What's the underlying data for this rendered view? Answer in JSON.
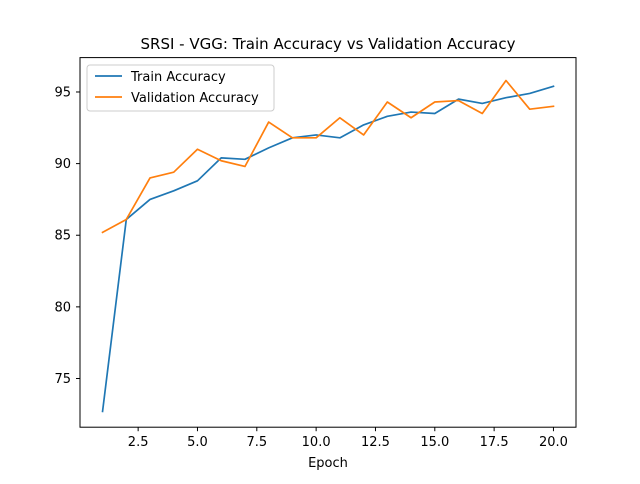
{
  "chart_data": {
    "type": "line",
    "title": "SRSI - VGG: Train Accuracy vs Validation Accuracy",
    "xlabel": "Epoch",
    "ylabel": "",
    "xlim": [
      0.05,
      20.95
    ],
    "ylim": [
      71.6,
      97.4
    ],
    "xticks": [
      2.5,
      5.0,
      7.5,
      10.0,
      12.5,
      15.0,
      17.5,
      20.0
    ],
    "xtick_labels": [
      "2.5",
      "5.0",
      "7.5",
      "10.0",
      "12.5",
      "15.0",
      "17.5",
      "20.0"
    ],
    "yticks": [
      75,
      80,
      85,
      90,
      95
    ],
    "ytick_labels": [
      "75",
      "80",
      "85",
      "90",
      "95"
    ],
    "grid": false,
    "legend_position": "top-left",
    "x": [
      1,
      2,
      3,
      4,
      5,
      6,
      7,
      8,
      9,
      10,
      11,
      12,
      13,
      14,
      15,
      16,
      17,
      18,
      19,
      20
    ],
    "series": [
      {
        "name": "Train Accuracy",
        "color": "#1f77b4",
        "values": [
          72.7,
          86.1,
          87.5,
          88.1,
          88.8,
          90.4,
          90.3,
          91.1,
          91.8,
          92.0,
          91.8,
          92.7,
          93.3,
          93.6,
          93.5,
          94.5,
          94.2,
          94.6,
          94.9,
          95.4
        ]
      },
      {
        "name": "Validation Accuracy",
        "color": "#ff7f0e",
        "values": [
          85.2,
          86.1,
          89.0,
          89.4,
          91.0,
          90.2,
          89.8,
          92.9,
          91.8,
          91.8,
          93.2,
          92.0,
          94.3,
          93.2,
          94.3,
          94.4,
          93.5,
          95.8,
          93.8,
          94.0
        ]
      }
    ]
  }
}
